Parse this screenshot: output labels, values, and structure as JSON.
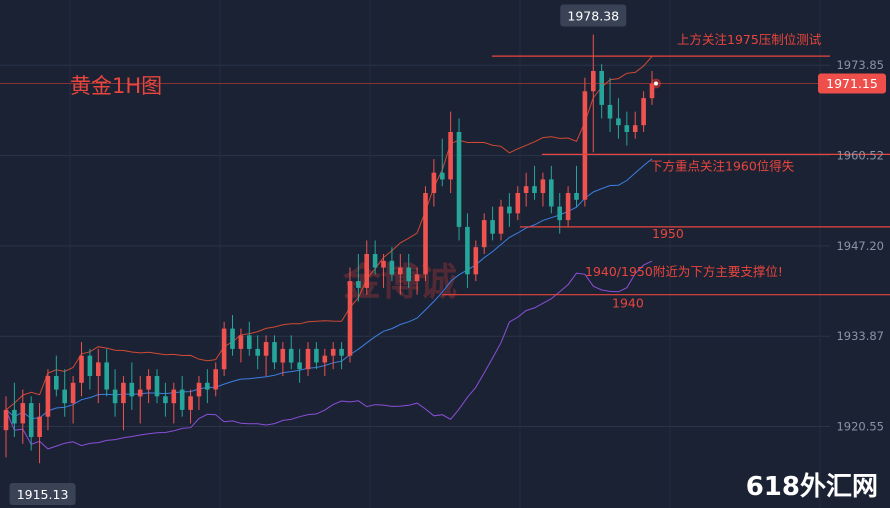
{
  "chart_data": {
    "type": "candlestick",
    "title": "黄金1H图",
    "y_axis_labels": [
      "1973.85",
      "1960.52",
      "1947.20",
      "1933.87",
      "1920.55"
    ],
    "price_min": 1910,
    "price_max": 1982,
    "high_label": "1978.38",
    "low_label": "1915.13",
    "current_price": "1971.15",
    "levels": [
      {
        "price": 1975.2,
        "label": "上方关注1975压制位测试"
      },
      {
        "price": 1960.7,
        "label": "下方重点关注1960位得失"
      },
      {
        "price": 1950.0,
        "label": "1950"
      },
      {
        "price": 1940.0,
        "label": "1940"
      }
    ],
    "support_note": "1940/1950附近为下方主要支撑位!",
    "watermark": "618外汇网",
    "center_watermark": "金博诚",
    "ohlc": [
      [
        1920,
        1925,
        1916,
        1923
      ],
      [
        1923,
        1927,
        1919,
        1921
      ],
      [
        1921,
        1926,
        1918,
        1924
      ],
      [
        1924,
        1925,
        1917,
        1919
      ],
      [
        1919,
        1924,
        1915.13,
        1922
      ],
      [
        1922,
        1929,
        1920,
        1928
      ],
      [
        1928,
        1931,
        1925,
        1926
      ],
      [
        1926,
        1929,
        1922,
        1924
      ],
      [
        1924,
        1928,
        1921,
        1927
      ],
      [
        1927,
        1933,
        1925,
        1931
      ],
      [
        1931,
        1932,
        1926,
        1928
      ],
      [
        1928,
        1932,
        1924,
        1930
      ],
      [
        1930,
        1932,
        1925,
        1926
      ],
      [
        1926,
        1929,
        1922,
        1924
      ],
      [
        1924,
        1928,
        1920,
        1927
      ],
      [
        1927,
        1930,
        1923,
        1925
      ],
      [
        1925,
        1928,
        1921,
        1926
      ],
      [
        1926,
        1929,
        1924,
        1928
      ],
      [
        1928,
        1929,
        1924,
        1925
      ],
      [
        1925,
        1927,
        1922,
        1924
      ],
      [
        1924,
        1927,
        1921,
        1926
      ],
      [
        1926,
        1928,
        1922,
        1923
      ],
      [
        1923,
        1926,
        1921,
        1925
      ],
      [
        1925,
        1928,
        1923,
        1927
      ],
      [
        1927,
        1929,
        1924,
        1926
      ],
      [
        1926,
        1930,
        1925,
        1929
      ],
      [
        1929,
        1936,
        1928,
        1935
      ],
      [
        1935,
        1937,
        1931,
        1932
      ],
      [
        1932,
        1935,
        1930,
        1934
      ],
      [
        1934,
        1936,
        1931,
        1932
      ],
      [
        1932,
        1934,
        1929,
        1931
      ],
      [
        1931,
        1934,
        1928,
        1933
      ],
      [
        1933,
        1934,
        1929,
        1930
      ],
      [
        1930,
        1933,
        1928,
        1932
      ],
      [
        1932,
        1934,
        1929,
        1930
      ],
      [
        1930,
        1932,
        1927,
        1929
      ],
      [
        1929,
        1933,
        1928,
        1932
      ],
      [
        1932,
        1933,
        1929,
        1930
      ],
      [
        1930,
        1932,
        1928,
        1931
      ],
      [
        1931,
        1933,
        1929,
        1932
      ],
      [
        1932,
        1933,
        1929,
        1931
      ],
      [
        1931,
        1944,
        1930,
        1942
      ],
      [
        1942,
        1946,
        1939,
        1941
      ],
      [
        1941,
        1948,
        1940,
        1946
      ],
      [
        1946,
        1948,
        1943,
        1944
      ],
      [
        1944,
        1946,
        1941,
        1945
      ],
      [
        1945,
        1947,
        1942,
        1943
      ],
      [
        1943,
        1946,
        1940,
        1944
      ],
      [
        1944,
        1946,
        1941,
        1942
      ],
      [
        1942,
        1944,
        1940,
        1943
      ],
      [
        1943,
        1956,
        1942,
        1955
      ],
      [
        1955,
        1960,
        1953,
        1958
      ],
      [
        1958,
        1963,
        1956,
        1957
      ],
      [
        1957,
        1967,
        1955,
        1964
      ],
      [
        1964,
        1966,
        1948,
        1950
      ],
      [
        1950,
        1952,
        1941,
        1943
      ],
      [
        1943,
        1948,
        1942,
        1947
      ],
      [
        1947,
        1952,
        1946,
        1951
      ],
      [
        1951,
        1953,
        1948,
        1949
      ],
      [
        1949,
        1954,
        1948,
        1953
      ],
      [
        1953,
        1955,
        1950,
        1952
      ],
      [
        1952,
        1956,
        1951,
        1955
      ],
      [
        1955,
        1958,
        1953,
        1956
      ],
      [
        1956,
        1959,
        1954,
        1955
      ],
      [
        1955,
        1958,
        1953,
        1957
      ],
      [
        1957,
        1959,
        1952,
        1953
      ],
      [
        1953,
        1955,
        1949,
        1951
      ],
      [
        1951,
        1956,
        1950,
        1955
      ],
      [
        1955,
        1959,
        1953,
        1954
      ],
      [
        1954,
        1972,
        1953,
        1970
      ],
      [
        1970,
        1978.38,
        1961,
        1973
      ],
      [
        1973,
        1974,
        1966,
        1968
      ],
      [
        1968,
        1972,
        1964,
        1966
      ],
      [
        1966,
        1969,
        1963,
        1965
      ],
      [
        1965,
        1967,
        1962,
        1964
      ],
      [
        1964,
        1967,
        1963,
        1965
      ],
      [
        1965,
        1970,
        1964,
        1969
      ],
      [
        1969,
        1973,
        1968,
        1971.15
      ]
    ]
  }
}
